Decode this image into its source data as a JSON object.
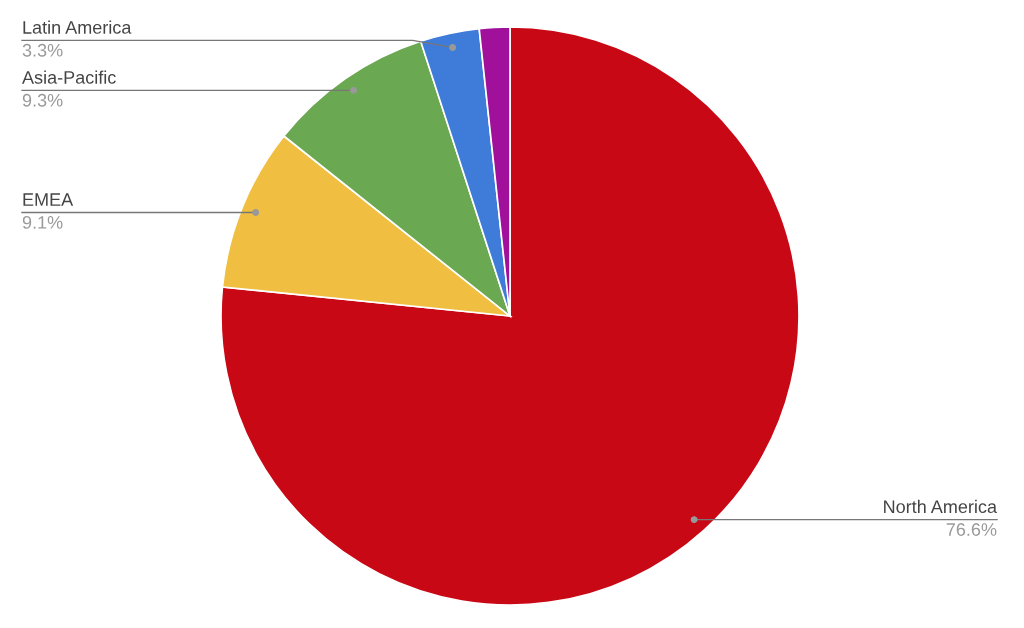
{
  "chart_data": {
    "type": "pie",
    "categories": [
      "North America",
      "EMEA",
      "Asia-Pacific",
      "Latin America",
      null
    ],
    "values": [
      76.6,
      9.1,
      9.3,
      3.3,
      1.7
    ],
    "colors": [
      "#c80815",
      "#f0bf42",
      "#6ba852",
      "#3f7bd9",
      "#a0109b"
    ],
    "value_labels": [
      "76.6%",
      "9.1%",
      "9.3%",
      "3.3%",
      null
    ],
    "legend": false
  }
}
